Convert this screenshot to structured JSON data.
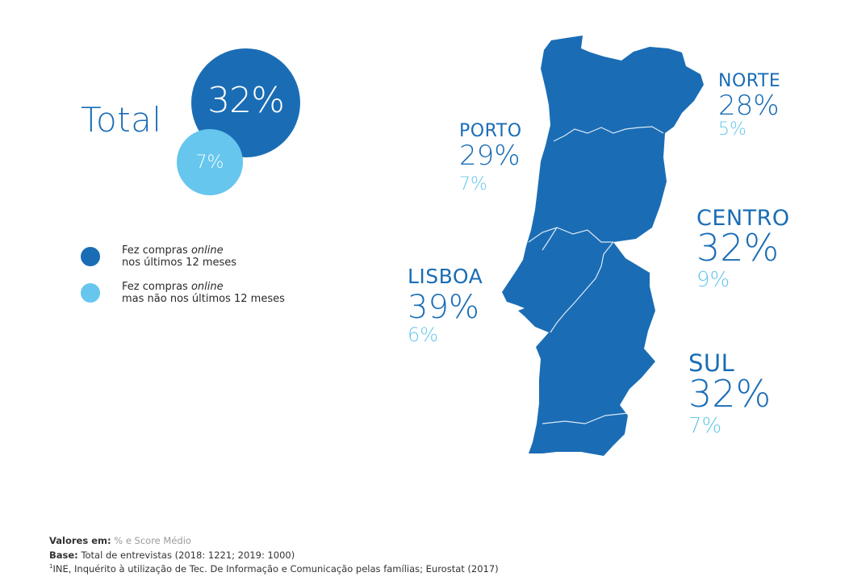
{
  "total": {
    "label": "Total",
    "main": "32%",
    "secondary": "7%"
  },
  "legend": [
    {
      "line1_a": "Fez compras ",
      "line1_em": "online",
      "line2": "nos últimos 12 meses",
      "color": "#1a6db5"
    },
    {
      "line1_a": "Fez compras ",
      "line1_em": "online",
      "line2": "mas não nos últimos 12 meses",
      "color": "#66c6ee"
    }
  ],
  "regions": {
    "norte": {
      "name": "NORTE",
      "main": "28%",
      "secondary": "5%"
    },
    "porto": {
      "name": "PORTO",
      "main": "29%",
      "secondary": "7%"
    },
    "centro": {
      "name": "CENTRO",
      "main": "32%",
      "secondary": "9%"
    },
    "lisboa": {
      "name": "LISBOA",
      "main": "39%",
      "secondary": "6%"
    },
    "sul": {
      "name": "SUL",
      "main": "32%",
      "secondary": "7%"
    }
  },
  "colors": {
    "primary": "#1a6db5",
    "secondary": "#66c6ee"
  },
  "footer": {
    "values_label": "Valores em:",
    "values_text": "% e Score Médio",
    "base_label": "Base:",
    "base_text": "Total de entrevistas (2018: 1221; 2019: 1000)",
    "note_mark": "1",
    "note_text": "INE, Inquérito à utilização de Tec. De Informação e Comunicação pelas famílias; Eurostat (2017)"
  }
}
